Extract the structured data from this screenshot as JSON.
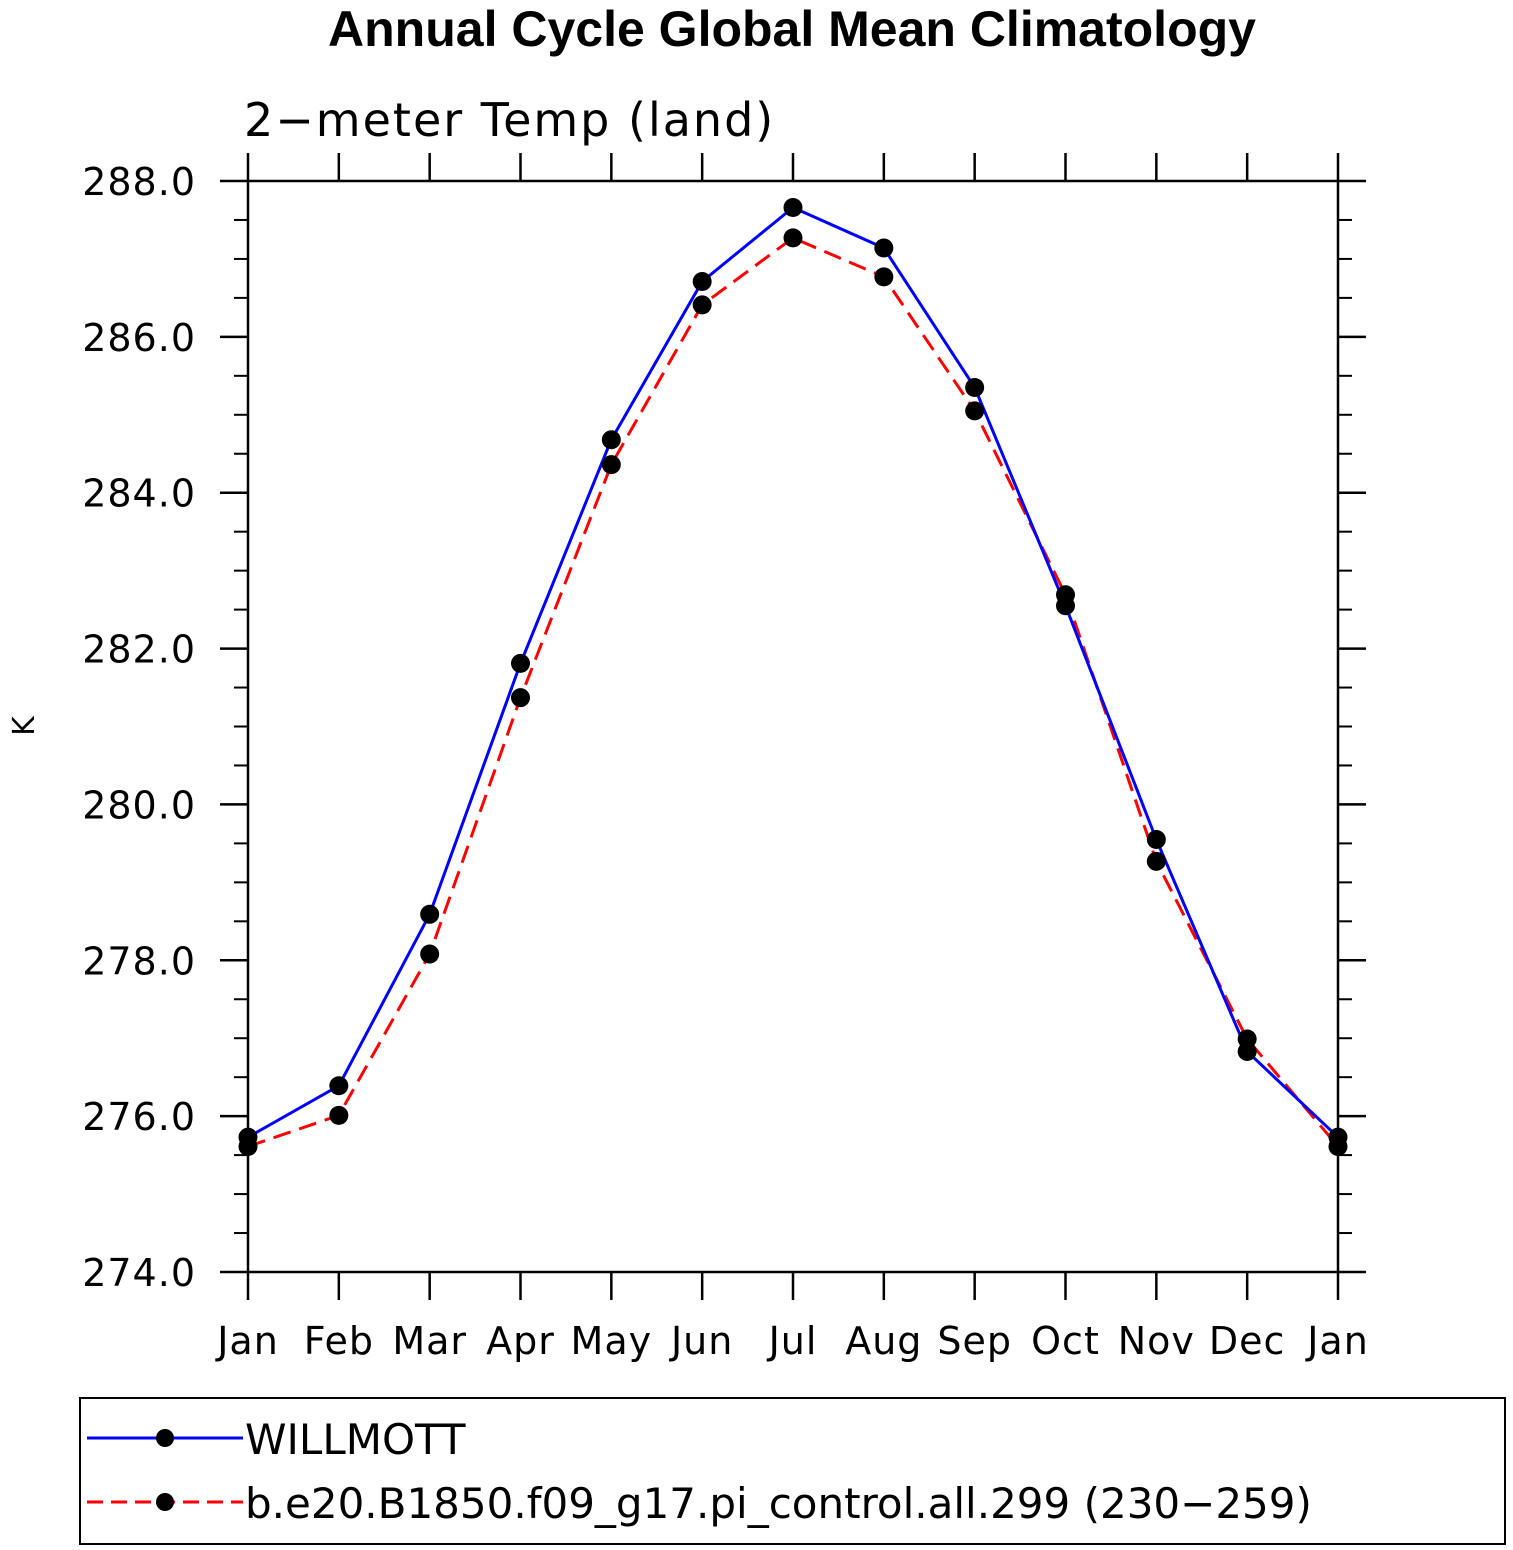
{
  "chart_data": {
    "type": "line",
    "title": "Annual Cycle Global Mean Climatology",
    "subtitle": "2−meter Temp (land)",
    "ylabel": "K",
    "xlabel": "",
    "categories": [
      "Jan",
      "Feb",
      "Mar",
      "Apr",
      "May",
      "Jun",
      "Jul",
      "Aug",
      "Sep",
      "Oct",
      "Nov",
      "Dec",
      "Jan"
    ],
    "ylim": [
      274.0,
      288.0
    ],
    "yticks": [
      "274.0",
      "276.0",
      "278.0",
      "280.0",
      "282.0",
      "284.0",
      "286.0",
      "288.0"
    ],
    "legend_position": "bottom",
    "grid": false,
    "series": [
      {
        "name": "WILLMOTT",
        "color": "#0000ff",
        "style": "solid",
        "marker": "filled-circle",
        "values": [
          275.73,
          276.39,
          278.59,
          281.81,
          284.68,
          286.71,
          287.66,
          287.14,
          285.35,
          282.55,
          279.55,
          276.83,
          275.73
        ]
      },
      {
        "name": "b.e20.B1850.f09_g17.pi_control.all.299 (230−259)",
        "color": "#ff0000",
        "style": "dashed",
        "marker": "filled-circle",
        "values": [
          275.61,
          276.01,
          278.08,
          281.37,
          284.36,
          286.41,
          287.27,
          286.77,
          285.05,
          282.69,
          279.27,
          276.99,
          275.61
        ]
      }
    ]
  }
}
